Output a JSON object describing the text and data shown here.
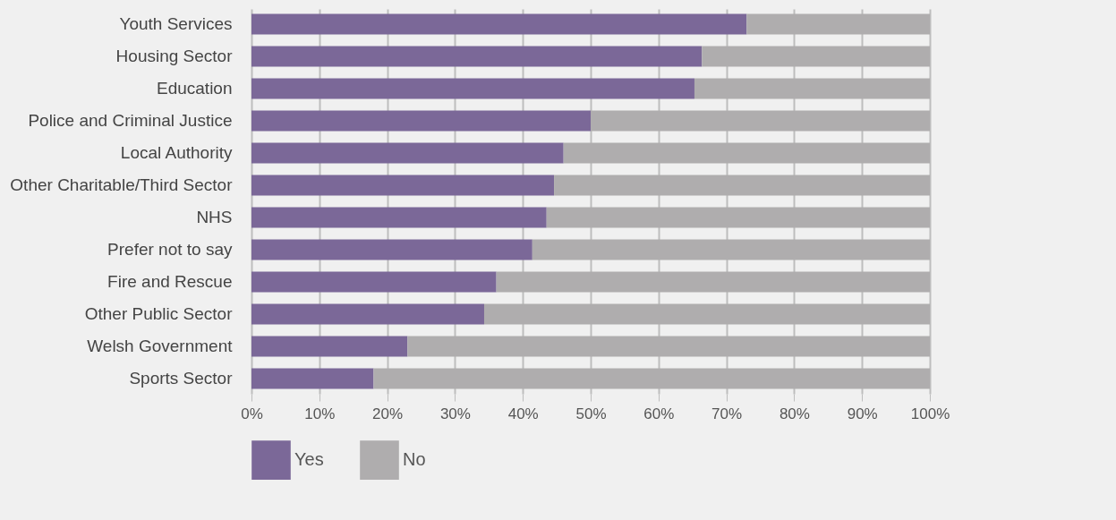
{
  "chart_data": {
    "type": "bar",
    "orientation": "horizontal",
    "stacked": true,
    "categories": [
      "Youth Services",
      "Housing Sector",
      "Education",
      "Police and Criminal Justice",
      "Local Authority",
      "Other Charitable/Third Sector",
      "NHS",
      "Prefer not to say",
      "Fire and Rescue",
      "Other Public Sector",
      "Welsh Government",
      "Sports Sector"
    ],
    "series": [
      {
        "name": "Yes",
        "color": "#7b6898",
        "values": [
          73,
          66.4,
          65.3,
          50,
          46,
          44.6,
          43.5,
          41.4,
          36.1,
          34.3,
          23,
          18
        ]
      },
      {
        "name": "No",
        "color": "#afadae",
        "values": [
          27,
          33.6,
          34.7,
          50,
          54,
          55.4,
          56.5,
          58.6,
          63.9,
          65.7,
          77,
          82
        ]
      }
    ],
    "xlim": [
      0,
      100
    ],
    "xticks": [
      {
        "value": 0,
        "label": "0%"
      },
      {
        "value": 10,
        "label": "10%"
      },
      {
        "value": 20,
        "label": "20%"
      },
      {
        "value": 30,
        "label": "30%"
      },
      {
        "value": 40,
        "label": "40%"
      },
      {
        "value": 50,
        "label": "50%"
      },
      {
        "value": 60,
        "label": "60%"
      },
      {
        "value": 70,
        "label": "70%"
      },
      {
        "value": 80,
        "label": "80%"
      },
      {
        "value": 90,
        "label": "90%"
      },
      {
        "value": 100,
        "label": "100%"
      }
    ],
    "grid": "x",
    "legend": "bottom"
  }
}
